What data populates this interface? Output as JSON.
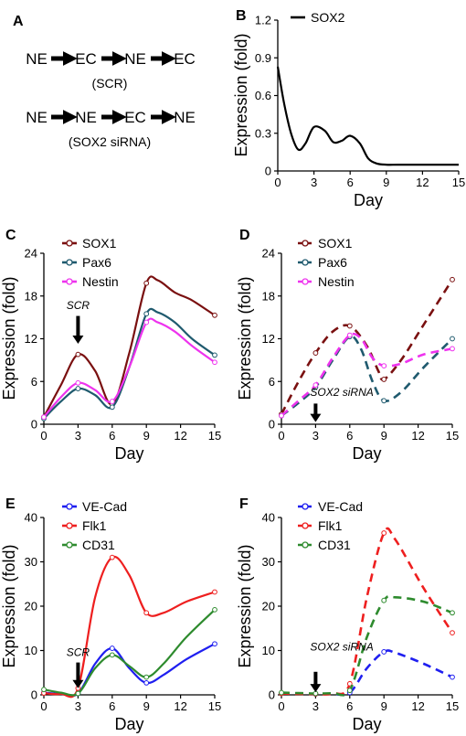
{
  "panelA": {
    "letter": "A",
    "row1": [
      "NE",
      "EC",
      "NE",
      "EC"
    ],
    "row1_label": "(SCR)",
    "row2": [
      "NE",
      "NE",
      "EC",
      "NE"
    ],
    "row2_label": "(SOX2 siRNA)"
  },
  "chart_data": [
    {
      "panel": "B",
      "type": "line",
      "xlabel": "Day",
      "ylabel": "Expression (fold)",
      "x_ticks": [
        0,
        3,
        6,
        9,
        12,
        15
      ],
      "y_ticks": [
        "0",
        "0.3",
        "0.6",
        "0.9",
        "1.2"
      ],
      "xlim": [
        0,
        15
      ],
      "ylim": [
        0,
        1.2
      ],
      "legend_position": "top-left",
      "series": [
        {
          "name": "SOX2",
          "color": "#000000",
          "dashed": false,
          "markers": false,
          "x": [
            0,
            0.5,
            1.1,
            1.7,
            2.3,
            3,
            3.9,
            4.6,
            5.3,
            6,
            6.8,
            7.5,
            8.2,
            9,
            10,
            12,
            13.5,
            15
          ],
          "y": [
            0.83,
            0.55,
            0.3,
            0.17,
            0.22,
            0.35,
            0.32,
            0.23,
            0.24,
            0.28,
            0.22,
            0.1,
            0.06,
            0.05,
            0.05,
            0.05,
            0.05,
            0.05
          ]
        }
      ]
    },
    {
      "panel": "C",
      "type": "line",
      "xlabel": "Day",
      "ylabel": "Expression (fold)",
      "x_ticks": [
        0,
        3,
        6,
        9,
        12,
        15
      ],
      "y_ticks": [
        "0",
        "6",
        "12",
        "18",
        "24"
      ],
      "xlim": [
        0,
        15
      ],
      "ylim": [
        0,
        24
      ],
      "legend_position": "top-left",
      "annotation": {
        "text": "SCR",
        "x": 3,
        "y_text": 16.2,
        "y_tail": 15.2,
        "y_head": 11.3
      },
      "series": [
        {
          "name": "SOX1",
          "color": "#7a1010",
          "dashed": false,
          "markers": true,
          "x": [
            0,
            3,
            6,
            9,
            15
          ],
          "y": [
            1,
            9.8,
            2.8,
            19.8,
            15.3
          ],
          "curve_x": [
            0,
            1.5,
            3,
            4.5,
            6,
            7.5,
            9,
            10,
            11.5,
            13,
            15
          ],
          "curve_y": [
            1,
            5.5,
            9.8,
            7.5,
            2.8,
            10,
            19.8,
            20.2,
            18.5,
            17.4,
            15.3
          ]
        },
        {
          "name": "Pax6",
          "color": "#1f5a6e",
          "dashed": false,
          "markers": true,
          "x": [
            0,
            3,
            6,
            9,
            15
          ],
          "y": [
            0.8,
            5,
            2.4,
            15.5,
            9.7
          ],
          "curve_x": [
            0,
            1.5,
            3,
            4.5,
            6,
            7.5,
            9,
            10,
            11.5,
            13,
            15
          ],
          "curve_y": [
            0.8,
            3.2,
            5,
            4.1,
            2.4,
            8,
            15.5,
            15.7,
            14.3,
            12,
            9.7
          ]
        },
        {
          "name": "Nestin",
          "color": "#ee33ee",
          "dashed": false,
          "markers": true,
          "x": [
            0,
            3,
            6,
            9,
            15
          ],
          "y": [
            1,
            5.8,
            3.2,
            14.3,
            8.7
          ],
          "curve_x": [
            0,
            1.5,
            3,
            4.5,
            6,
            7.5,
            9,
            10,
            11.5,
            13,
            15
          ],
          "curve_y": [
            1,
            3.8,
            5.8,
            4.8,
            3.2,
            8,
            14.3,
            14.3,
            13,
            11,
            8.7
          ]
        }
      ]
    },
    {
      "panel": "D",
      "type": "line",
      "xlabel": "Day",
      "ylabel": "Expression (fold)",
      "x_ticks": [
        0,
        3,
        6,
        9,
        12,
        15
      ],
      "y_ticks": [
        "0",
        "6",
        "12",
        "18",
        "24"
      ],
      "xlim": [
        0,
        15
      ],
      "ylim": [
        0,
        24
      ],
      "legend_position": "top-left",
      "annotation": {
        "text": "SOX2 siRNA",
        "x": 3,
        "y_text": 4.0,
        "y_tail": 2.9,
        "y_head": 0.3
      },
      "series": [
        {
          "name": "SOX1",
          "color": "#7a1010",
          "dashed": true,
          "markers": true,
          "x": [
            0,
            3,
            6,
            9,
            15
          ],
          "y": [
            1.4,
            10,
            13.8,
            6.3,
            20.3
          ],
          "curve_x": [
            0,
            1.5,
            3,
            4.5,
            6,
            7.5,
            8.5,
            9,
            10.5,
            12.5,
            15
          ],
          "curve_y": [
            1.4,
            6,
            10,
            13,
            13.8,
            11,
            7.5,
            6.3,
            9,
            14,
            20.3
          ]
        },
        {
          "name": "Pax6",
          "color": "#1f5a6e",
          "dashed": true,
          "markers": true,
          "x": [
            0,
            3,
            6,
            9,
            15
          ],
          "y": [
            1.2,
            5.2,
            12.3,
            3.3,
            12
          ],
          "curve_x": [
            0,
            1.5,
            3,
            4.5,
            6,
            7,
            8,
            9,
            10.5,
            12.5,
            15
          ],
          "curve_y": [
            1.2,
            3,
            5.2,
            9,
            12.3,
            10.5,
            6,
            3.3,
            4.5,
            8,
            12
          ]
        },
        {
          "name": "Nestin",
          "color": "#ee33ee",
          "dashed": true,
          "markers": true,
          "x": [
            0,
            3,
            6,
            9,
            15
          ],
          "y": [
            1.2,
            5.5,
            12.5,
            8.2,
            10.6
          ],
          "curve_x": [
            0,
            1.5,
            3,
            4.5,
            6,
            7,
            8,
            9,
            10.5,
            12.5,
            15
          ],
          "curve_y": [
            1.2,
            3.3,
            5.5,
            9.3,
            12.5,
            12,
            9.3,
            8.2,
            8.5,
            9.8,
            10.6
          ]
        }
      ]
    },
    {
      "panel": "E",
      "type": "line",
      "xlabel": "Day",
      "ylabel": "Expression (fold)",
      "x_ticks": [
        0,
        3,
        6,
        9,
        12,
        15
      ],
      "y_ticks": [
        "0",
        "10",
        "20",
        "30",
        "40"
      ],
      "xlim": [
        0,
        15
      ],
      "ylim": [
        0,
        40
      ],
      "legend_position": "top-left",
      "annotation": {
        "text": "SCR",
        "x": 3,
        "y_text": 8.8,
        "y_tail": 7.3,
        "y_head": 1.5
      },
      "series": [
        {
          "name": "VE-Cad",
          "color": "#1f1ff0",
          "dashed": false,
          "markers": true,
          "x": [
            0,
            3,
            6,
            9,
            15
          ],
          "y": [
            0.5,
            0.3,
            10.5,
            2.7,
            11.5
          ],
          "curve_x": [
            0,
            1.5,
            3,
            4.5,
            6,
            7.5,
            9,
            10.5,
            12.5,
            15
          ],
          "curve_y": [
            0.5,
            0.2,
            0.3,
            7,
            10.5,
            6,
            2.7,
            4.5,
            8,
            11.5
          ]
        },
        {
          "name": "Flk1",
          "color": "#ee1f1f",
          "dashed": false,
          "markers": true,
          "x": [
            0,
            3,
            6,
            9,
            15
          ],
          "y": [
            0.4,
            1.5,
            31,
            18.5,
            23.2
          ],
          "curve_x": [
            0,
            1.5,
            3,
            4.5,
            6,
            7.5,
            9,
            10.5,
            12.5,
            15
          ],
          "curve_y": [
            0.4,
            0.2,
            1.5,
            22,
            31,
            27,
            18.5,
            18.5,
            21,
            23.2
          ]
        },
        {
          "name": "CD31",
          "color": "#2e8b2e",
          "dashed": false,
          "markers": true,
          "x": [
            0,
            3,
            6,
            9,
            15
          ],
          "y": [
            1.2,
            0.3,
            9,
            4,
            19.2
          ],
          "curve_x": [
            0,
            1.5,
            3,
            4.5,
            6,
            7.5,
            9,
            10.5,
            12.5,
            15
          ],
          "curve_y": [
            1.2,
            0.5,
            0.3,
            6,
            9,
            6.5,
            4,
            7,
            13,
            19.2
          ]
        }
      ]
    },
    {
      "panel": "F",
      "type": "line",
      "xlabel": "Day",
      "ylabel": "Expression (fold)",
      "x_ticks": [
        0,
        3,
        6,
        9,
        12,
        15
      ],
      "y_ticks": [
        "0",
        "10",
        "20",
        "30",
        "40"
      ],
      "xlim": [
        0,
        15
      ],
      "ylim": [
        0,
        40
      ],
      "legend_position": "top-left",
      "annotation": {
        "text": "SOX2 siRNA",
        "x": 3,
        "y_text": 10.0,
        "y_tail": 5.2,
        "y_head": 0.6
      },
      "series": [
        {
          "name": "VE-Cad",
          "color": "#1f1ff0",
          "dashed": true,
          "markers": true,
          "x": [
            0,
            3,
            6,
            9,
            15
          ],
          "y": [
            0.4,
            0.2,
            0.5,
            9.7,
            4
          ],
          "curve_x": [
            0,
            1.5,
            3,
            4.5,
            6,
            7.5,
            9,
            10,
            12.5,
            15
          ],
          "curve_y": [
            0.4,
            0.3,
            0.2,
            0.2,
            0.5,
            6,
            9.7,
            9.5,
            7,
            4
          ]
        },
        {
          "name": "Flk1",
          "color": "#ee1f1f",
          "dashed": true,
          "markers": true,
          "x": [
            0,
            3,
            6,
            9,
            15
          ],
          "y": [
            0.3,
            0.2,
            2.5,
            36.5,
            14
          ],
          "curve_x": [
            0,
            1.5,
            3,
            4.5,
            6,
            7.5,
            9,
            10,
            12.5,
            15
          ],
          "curve_y": [
            0.3,
            0.2,
            0.2,
            0.3,
            2.5,
            22,
            36.5,
            35,
            24,
            14
          ]
        },
        {
          "name": "CD31",
          "color": "#2e8b2e",
          "dashed": true,
          "markers": true,
          "x": [
            0,
            3,
            6,
            9,
            15
          ],
          "y": [
            0.5,
            0.3,
            1,
            21.3,
            18.5
          ],
          "curve_x": [
            0,
            1.5,
            3,
            4.5,
            6,
            7.5,
            9,
            10,
            12.5,
            15
          ],
          "curve_y": [
            0.5,
            0.4,
            0.3,
            0.4,
            1,
            13,
            21.3,
            22,
            21,
            18.5
          ]
        }
      ]
    }
  ]
}
